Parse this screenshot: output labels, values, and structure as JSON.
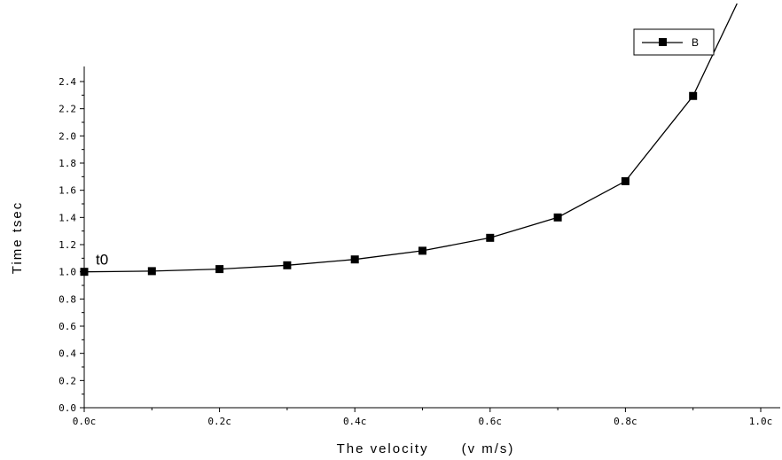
{
  "chart_data": {
    "type": "line",
    "title": "",
    "xlabel": "The velocity      (v m/s)",
    "ylabel": "Time    tsec",
    "x": [
      0,
      0.1,
      0.2,
      0.3,
      0.4,
      0.5,
      0.6,
      0.7,
      0.8,
      0.9
    ],
    "xlim": [
      0,
      1.0
    ],
    "ylim": [
      0,
      2.55
    ],
    "x_tick_values": [
      0,
      0.2,
      0.4,
      0.6,
      0.8,
      1.0
    ],
    "x_tick_labels": [
      "0.0c",
      "0.2c",
      "0.4c",
      "0.6c",
      "0.8c",
      "1.0c"
    ],
    "y_tick_values": [
      0.0,
      0.2,
      0.4,
      0.6,
      0.8,
      1.0,
      1.2,
      1.4,
      1.6,
      1.8,
      2.0,
      2.2,
      2.4
    ],
    "y_tick_labels": [
      "0.0",
      "0.2",
      "0.4",
      "0.6",
      "0.8",
      "1.0",
      "1.2",
      "1.4",
      "1.6",
      "1.8",
      "2.0",
      "2.2",
      "2.4"
    ],
    "series": [
      {
        "name": "B",
        "values": [
          1.0,
          1.005,
          1.02,
          1.048,
          1.091,
          1.155,
          1.25,
          1.4,
          1.667,
          2.294
        ],
        "marker": "square",
        "color": "#000000"
      }
    ],
    "annotations": [
      {
        "text": "t0",
        "x": 0.0,
        "y": 1.0
      }
    ],
    "grid": false,
    "legend_position": "top-right"
  }
}
